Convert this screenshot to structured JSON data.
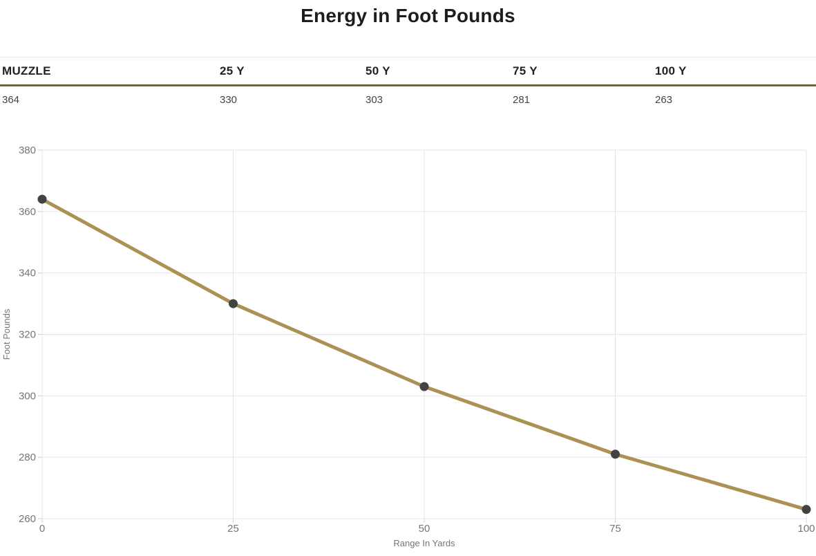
{
  "page_title": "Energy in Foot Pounds",
  "table": {
    "headers": [
      "MUZZLE",
      "25 Y",
      "50 Y",
      "75 Y",
      "100 Y"
    ],
    "rows": [
      [
        "364",
        "330",
        "303",
        "281",
        "263"
      ]
    ]
  },
  "chart_data": {
    "type": "line",
    "x": [
      0,
      25,
      50,
      75,
      100
    ],
    "series": [
      {
        "name": "Energy in Foot Pounds",
        "values": [
          364,
          330,
          303,
          281,
          263
        ]
      }
    ],
    "title": "Energy in Foot Pounds",
    "xlabel": "Range In Yards",
    "ylabel": "Foot Pounds",
    "xlim": [
      0,
      100
    ],
    "ylim": [
      260,
      380
    ],
    "xticks": [
      0,
      25,
      50,
      75,
      100
    ],
    "yticks": [
      260,
      280,
      300,
      320,
      340,
      360,
      380
    ],
    "grid": true,
    "legend": false
  },
  "colors": {
    "line": "#AB9254",
    "marker": "#424242",
    "grid": "#e4e4e4",
    "tick": "#cfcfcf",
    "axis_label": "#757575",
    "header_border": "#6D6248",
    "title_text": "#1d1d1d",
    "header_text": "#222222",
    "cell_text": "#444444"
  }
}
